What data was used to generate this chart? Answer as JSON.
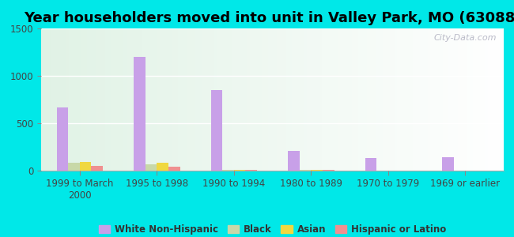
{
  "title": "Year householders moved into unit in Valley Park, MO (63088)",
  "categories": [
    "1999 to March\n2000",
    "1995 to 1998",
    "1990 to 1994",
    "1980 to 1989",
    "1970 to 1979",
    "1969 or earlier"
  ],
  "series": {
    "White Non-Hispanic": [
      670,
      1200,
      850,
      210,
      130,
      145
    ],
    "Black": [
      80,
      70,
      10,
      10,
      0,
      0
    ],
    "Asian": [
      90,
      80,
      10,
      10,
      0,
      0
    ],
    "Hispanic or Latino": [
      50,
      40,
      10,
      10,
      0,
      0
    ]
  },
  "colors": {
    "White Non-Hispanic": "#c8a0e8",
    "Black": "#c8d8a8",
    "Asian": "#f0d840",
    "Hispanic or Latino": "#f09090"
  },
  "ylim": [
    0,
    1500
  ],
  "yticks": [
    0,
    500,
    1000,
    1500
  ],
  "outer_bg": "#00e8e8",
  "watermark": "City-Data.com",
  "bar_width": 0.15,
  "title_fontsize": 13,
  "legend_fontsize": 8.5,
  "tick_fontsize": 8.5
}
